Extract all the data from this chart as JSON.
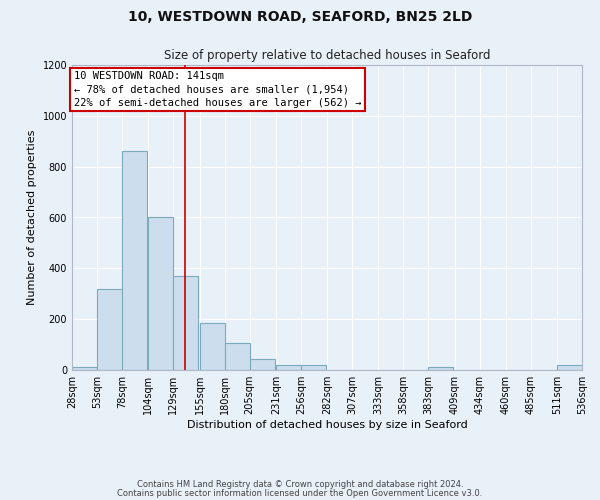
{
  "title": "10, WESTDOWN ROAD, SEAFORD, BN25 2LD",
  "subtitle": "Size of property relative to detached houses in Seaford",
  "xlabel": "Distribution of detached houses by size in Seaford",
  "ylabel": "Number of detached properties",
  "bar_left_edges": [
    28,
    53,
    78,
    104,
    129,
    155,
    180,
    205,
    231,
    256,
    282,
    307,
    333,
    358,
    383,
    409,
    434,
    460,
    485,
    511
  ],
  "bar_heights": [
    10,
    320,
    860,
    600,
    370,
    185,
    105,
    45,
    20,
    20,
    0,
    0,
    0,
    0,
    10,
    0,
    0,
    0,
    0,
    20
  ],
  "bin_width": 25,
  "bar_color": "#ccdded",
  "bar_edge_color": "#7aaabb",
  "property_line_x": 141,
  "ylim": [
    0,
    1200
  ],
  "yticks": [
    0,
    200,
    400,
    600,
    800,
    1000,
    1200
  ],
  "xtick_labels": [
    "28sqm",
    "53sqm",
    "78sqm",
    "104sqm",
    "129sqm",
    "155sqm",
    "180sqm",
    "205sqm",
    "231sqm",
    "256sqm",
    "282sqm",
    "307sqm",
    "333sqm",
    "358sqm",
    "383sqm",
    "409sqm",
    "434sqm",
    "460sqm",
    "485sqm",
    "511sqm",
    "536sqm"
  ],
  "annotation_title": "10 WESTDOWN ROAD: 141sqm",
  "annotation_line1": "← 78% of detached houses are smaller (1,954)",
  "annotation_line2": "22% of semi-detached houses are larger (562) →",
  "annotation_box_color": "#ffffff",
  "annotation_box_edge_color": "#cc0000",
  "red_line_color": "#cc0000",
  "footer1": "Contains HM Land Registry data © Crown copyright and database right 2024.",
  "footer2": "Contains public sector information licensed under the Open Government Licence v3.0.",
  "background_color": "#e8f0f8",
  "plot_bg_color": "#e8f0f8",
  "grid_color": "#ffffff",
  "title_fontsize": 10,
  "subtitle_fontsize": 8.5,
  "axis_label_fontsize": 8,
  "tick_fontsize": 7,
  "annotation_fontsize": 7.5,
  "footer_fontsize": 6
}
